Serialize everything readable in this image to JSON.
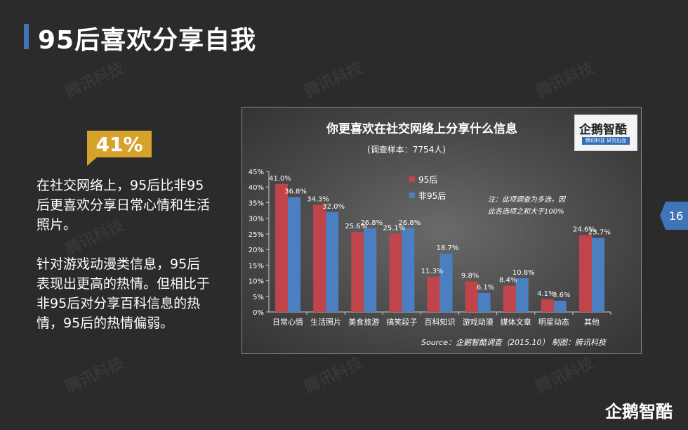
{
  "slide": {
    "title": "95后喜欢分享自我",
    "badge": "41%",
    "paragraph1": "在社交网络上，95后比非95后更喜欢分享日常心情和生活照片。",
    "paragraph2": "针对游戏动漫类信息，95后表现出更高的热情。但相比于非95后对分享百科信息的热情，95后的热情偏弱。",
    "page_number": "16",
    "brand": "企鹅智酷",
    "watermark_text": "腾讯科技"
  },
  "logo": {
    "name": "企鹅智酷",
    "subtitle": "腾讯科技 研究出品"
  },
  "colors": {
    "series1": "#c0454a",
    "series2": "#4b7fc1",
    "accent": "#3f74b6",
    "badge": "#d6a22a"
  },
  "chart_data": {
    "type": "bar",
    "title": "你更喜欢在社交网络上分享什么信息",
    "subtitle": "(调查样本：7754人)",
    "categories": [
      "日常心情",
      "生活照片",
      "美食旅游",
      "搞笑段子",
      "百科知识",
      "游戏动漫",
      "媒体文章",
      "明星动态",
      "其他"
    ],
    "series": [
      {
        "name": "95后",
        "values": [
          41.0,
          34.3,
          25.6,
          25.1,
          11.3,
          9.8,
          8.4,
          4.1,
          24.6
        ]
      },
      {
        "name": "非95后",
        "values": [
          36.8,
          32.0,
          26.8,
          26.8,
          18.7,
          6.1,
          10.8,
          3.6,
          23.7
        ]
      }
    ],
    "value_labels": [
      [
        "41.0%",
        "34.3%",
        "25.6%",
        "25.1%",
        "11.3%",
        "9.8%",
        "8.4%",
        "4.1%",
        "24.6%"
      ],
      [
        "36.8%",
        "32.0%",
        "26.8%",
        "26.8%",
        "18.7%",
        "6.1%",
        "10.8%",
        "3.6%",
        "23.7%"
      ]
    ],
    "yticks": [
      "0%",
      "5%",
      "10%",
      "15%",
      "20%",
      "25%",
      "30%",
      "35%",
      "40%",
      "45%"
    ],
    "ylim": [
      0,
      45
    ],
    "note_line1": "注：此项调查为多选，因",
    "note_line2": "此各选项之和大于100%",
    "source": "Source：企鹅智酷调查（2015.10）   制图：腾讯科技",
    "legend_position": "top-center",
    "grid": false
  }
}
